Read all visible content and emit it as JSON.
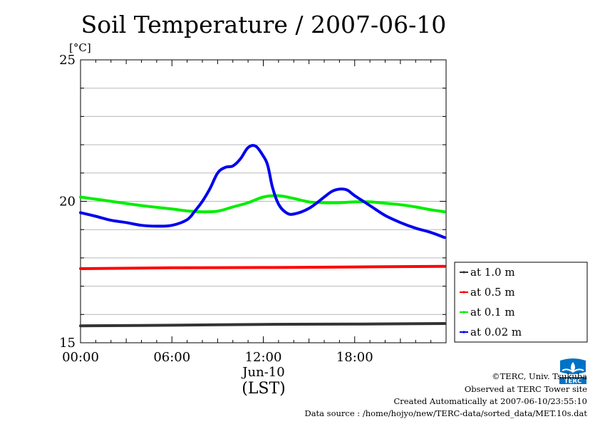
{
  "chart_data": {
    "type": "line",
    "title": "Soil Temperature / 2007-06-10",
    "ylabel": "[°C]",
    "xlabel_date": "Jun-10",
    "xlabel_unit": "(LST)",
    "xlim": [
      0,
      24
    ],
    "ylim": [
      15,
      25
    ],
    "x_ticks": [
      {
        "value": 0,
        "label": "00:00"
      },
      {
        "value": 6,
        "label": "06:00"
      },
      {
        "value": 12,
        "label": "12:00"
      },
      {
        "value": 18,
        "label": "18:00"
      }
    ],
    "y_ticks": [
      {
        "value": 15,
        "label": "15"
      },
      {
        "value": 20,
        "label": "20"
      },
      {
        "value": 25,
        "label": "25"
      }
    ],
    "grid": true,
    "legend_position": "right-bottom",
    "series": [
      {
        "name": "at 1.0 m",
        "color": "#333333",
        "x": [
          0,
          6,
          12,
          18,
          23.9
        ],
        "y": [
          15.6,
          15.62,
          15.65,
          15.66,
          15.68
        ]
      },
      {
        "name": "at 0.5 m",
        "color": "#ff0000",
        "x": [
          0,
          6,
          12,
          18,
          23.9
        ],
        "y": [
          17.62,
          17.65,
          17.66,
          17.68,
          17.7
        ]
      },
      {
        "name": "at 0.1 m",
        "color": "#00ee00",
        "x": [
          0,
          2,
          4,
          6,
          7,
          8,
          9,
          10,
          11,
          12,
          13,
          14,
          15,
          16,
          17,
          18,
          19,
          20,
          21,
          22,
          23,
          23.9
        ],
        "y": [
          20.15,
          20.0,
          19.85,
          19.73,
          19.66,
          19.63,
          19.65,
          19.8,
          19.95,
          20.15,
          20.2,
          20.1,
          19.98,
          19.95,
          19.95,
          19.98,
          19.98,
          19.93,
          19.88,
          19.8,
          19.7,
          19.63
        ]
      },
      {
        "name": "at 0.02 m",
        "color": "#0000ee",
        "x": [
          0,
          1,
          2,
          3,
          4,
          5,
          6,
          7,
          7.5,
          8,
          8.5,
          9,
          9.5,
          10,
          10.5,
          11,
          11.5,
          12,
          12.3,
          12.6,
          13,
          13.5,
          14,
          15,
          16,
          16.5,
          17,
          17.5,
          18,
          19,
          20,
          21,
          22,
          23,
          23.9
        ],
        "y": [
          19.6,
          19.47,
          19.33,
          19.25,
          19.15,
          19.12,
          19.15,
          19.35,
          19.65,
          20.0,
          20.45,
          21.0,
          21.2,
          21.25,
          21.5,
          21.9,
          21.95,
          21.6,
          21.25,
          20.5,
          19.9,
          19.6,
          19.55,
          19.75,
          20.15,
          20.35,
          20.43,
          20.4,
          20.2,
          19.85,
          19.5,
          19.25,
          19.05,
          18.9,
          18.72
        ]
      }
    ]
  },
  "footer": {
    "copyright": "©TERC, Univ. Tsukuba",
    "observed": "Observed at TERC Tower site",
    "created": "Created Automatically at 2007-06-10/23:55:10",
    "source": "Data source : /home/hojyo/new/TERC-data/sorted_data/MET.10s.dat"
  },
  "logo": {
    "text": "TERC",
    "color": "#0072c6"
  }
}
